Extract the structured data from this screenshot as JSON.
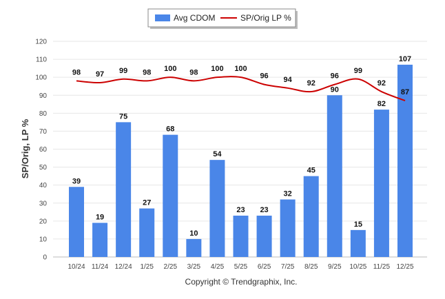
{
  "chart_data": {
    "type": "bar",
    "categories": [
      "10/24",
      "11/24",
      "12/24",
      "1/25",
      "2/25",
      "3/25",
      "4/25",
      "5/25",
      "6/25",
      "7/25",
      "8/25",
      "9/25",
      "10/25",
      "11/25",
      "12/25"
    ],
    "series": [
      {
        "name": "Avg CDOM",
        "type": "bar",
        "color": "#4a86e8",
        "values": [
          39,
          19,
          75,
          27,
          68,
          10,
          54,
          23,
          23,
          32,
          45,
          90,
          15,
          82,
          107
        ]
      },
      {
        "name": "SP/Orig LP %",
        "type": "line",
        "color": "#cc0000",
        "values": [
          98,
          97,
          99,
          98,
          100,
          98,
          100,
          100,
          96,
          94,
          92,
          96,
          99,
          92,
          87
        ]
      }
    ],
    "ylabel": "SP/Orig, LP %",
    "xlabel": "",
    "ylim": [
      0,
      120
    ],
    "yticks": [
      0,
      10,
      20,
      30,
      40,
      50,
      60,
      70,
      80,
      90,
      100,
      110,
      120
    ],
    "grid": true,
    "legend_position": "top-center",
    "data_labels": true
  },
  "footer": {
    "copyright": "Copyright © Trendgraphix, Inc."
  }
}
